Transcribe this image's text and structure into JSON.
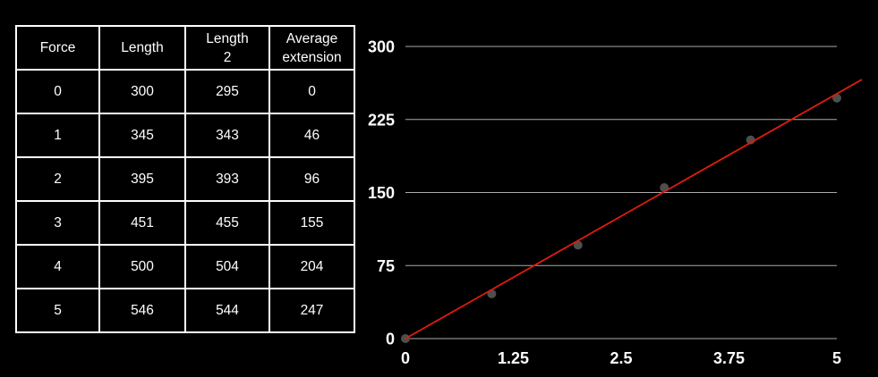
{
  "colors": {
    "background": "#000000",
    "table_border": "#ffffff",
    "table_text": "#ffffff",
    "gridline": "#aaaaaa",
    "tick_label": "#ffffff",
    "point": "#4e4e4e",
    "trendline": "#e01b0e"
  },
  "table": {
    "columns": [
      "Force",
      "Length",
      "Length\n2",
      "Average\nextension"
    ],
    "rows": [
      [
        "0",
        "300",
        "295",
        "0"
      ],
      [
        "1",
        "345",
        "343",
        "46"
      ],
      [
        "2",
        "395",
        "393",
        "96"
      ],
      [
        "3",
        "451",
        "455",
        "155"
      ],
      [
        "4",
        "500",
        "504",
        "204"
      ],
      [
        "5",
        "546",
        "544",
        "247"
      ]
    ]
  },
  "chart_data": {
    "type": "scatter",
    "title": "",
    "xlabel": "",
    "ylabel": "",
    "x": [
      0,
      1,
      2,
      3,
      4,
      5
    ],
    "series": [
      {
        "name": "Average extension",
        "values": [
          0,
          46,
          96,
          155,
          204,
          247
        ]
      }
    ],
    "trendline": {
      "x1": 0,
      "y1": 0,
      "x2": 5.29,
      "y2": 266
    },
    "x_ticks": [
      "0",
      "1.25",
      "2.5",
      "3.75",
      "5"
    ],
    "x_tick_values": [
      0,
      1.25,
      2.5,
      3.75,
      5
    ],
    "y_ticks": [
      "0",
      "75",
      "150",
      "225",
      "300"
    ],
    "y_tick_values": [
      0,
      75,
      150,
      225,
      300
    ],
    "xlim": [
      0,
      5
    ],
    "ylim": [
      0,
      300
    ],
    "grid": "horizontal",
    "legend": "none"
  }
}
